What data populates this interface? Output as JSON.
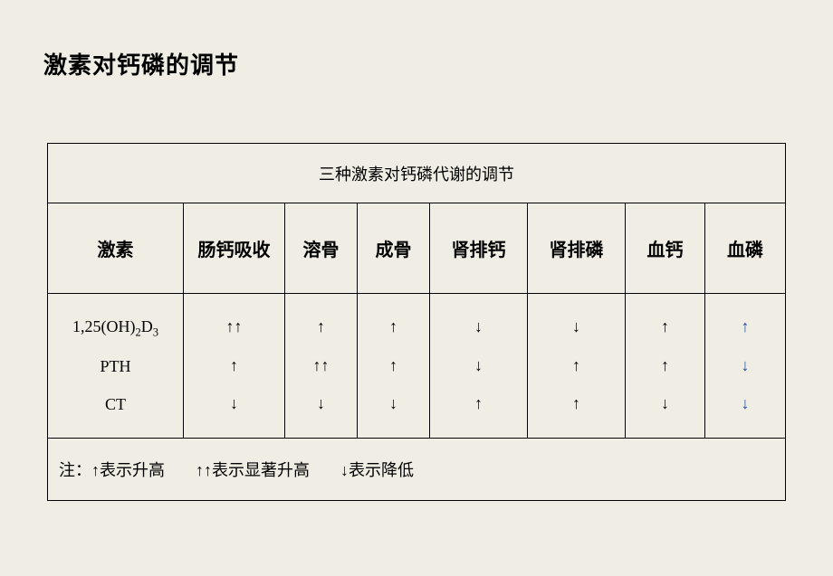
{
  "title": "激素对钙磷的调节",
  "table": {
    "caption": "三种激素对钙磷代谢的调节",
    "columns": [
      "激素",
      "肠钙吸收",
      "溶骨",
      "成骨",
      "肾排钙",
      "肾排磷",
      "血钙",
      "血磷"
    ],
    "hormones": [
      {
        "name_html": "1,25(OH)<sub>2</sub>D<sub>3</sub>"
      },
      {
        "name_html": "PTH"
      },
      {
        "name_html": "CT"
      }
    ],
    "arrows": {
      "up": "↑",
      "up2": "↑↑",
      "down": "↓"
    },
    "cells": [
      [
        "up2",
        "up",
        "up",
        "down",
        "down",
        "up",
        "up_blue"
      ],
      [
        "up",
        "up2",
        "up",
        "down",
        "up",
        "up",
        "down_blue"
      ],
      [
        "down",
        "down",
        "down",
        "up",
        "up",
        "down",
        "down_blue"
      ]
    ],
    "note": {
      "prefix": "注：",
      "items": [
        "↑表示升高",
        "↑↑表示显著升高",
        "↓表示降低"
      ]
    },
    "colors": {
      "page_bg": "#f0ede4",
      "border": "#000000",
      "text": "#000000",
      "blue_arrow": "#1f4e9c"
    }
  }
}
